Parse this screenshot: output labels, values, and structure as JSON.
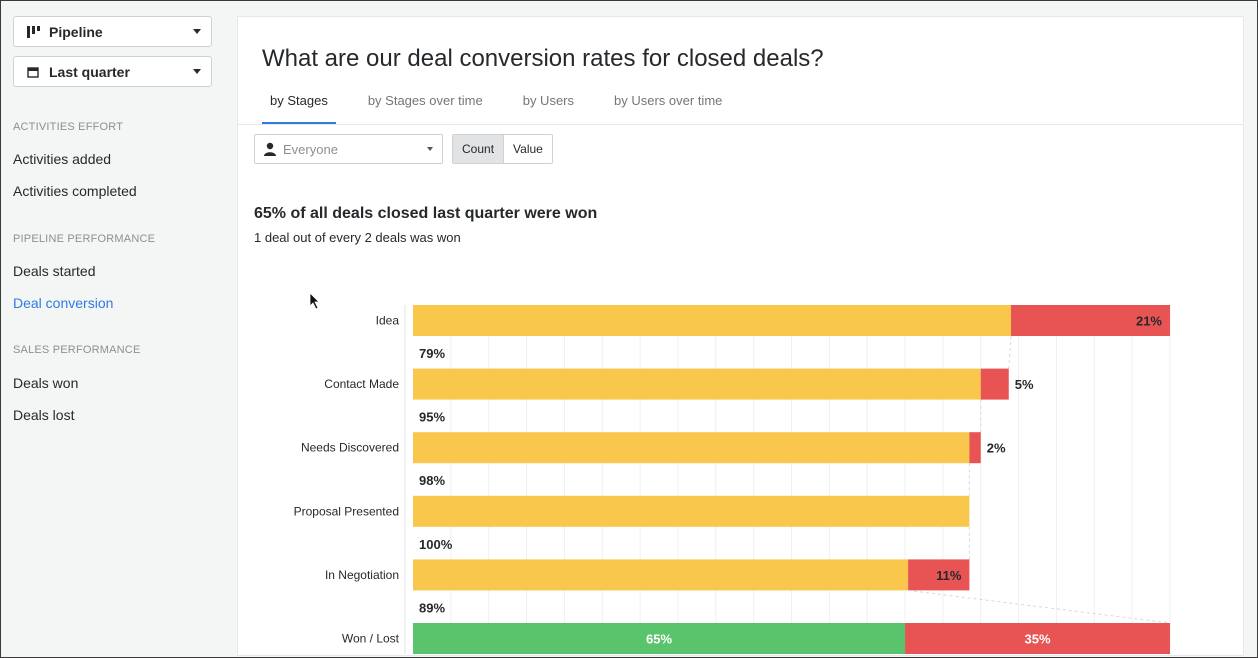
{
  "sidebar": {
    "pipeline_dropdown": {
      "label": "Pipeline",
      "icon": "pipeline-icon"
    },
    "period_dropdown": {
      "label": "Last quarter",
      "icon": "calendar-icon"
    },
    "sections": [
      {
        "heading": "ACTIVITIES EFFORT",
        "items": [
          {
            "label": "Activities added"
          },
          {
            "label": "Activities completed"
          }
        ]
      },
      {
        "heading": "PIPELINE PERFORMANCE",
        "items": [
          {
            "label": "Deals started"
          },
          {
            "label": "Deal conversion",
            "active": true
          }
        ]
      },
      {
        "heading": "SALES PERFORMANCE",
        "items": [
          {
            "label": "Deals won"
          },
          {
            "label": "Deals lost"
          }
        ]
      }
    ]
  },
  "main": {
    "title": "What are our deal conversion rates for closed deals?",
    "tabs": [
      {
        "label": "by Stages",
        "active": true
      },
      {
        "label": "by Stages over time"
      },
      {
        "label": "by Users"
      },
      {
        "label": "by Users over time"
      }
    ],
    "filter": {
      "user_select": "Everyone",
      "toggle": [
        "Count",
        "Value"
      ],
      "toggle_selected": "Count"
    },
    "headline": "65% of all deals closed last quarter were won",
    "subline": "1 deal out of every 2 deals was won"
  },
  "colors": {
    "accent": "#317ae2",
    "conversion": "#f9c74c",
    "lost": "#e85353",
    "won": "#5ac46c"
  },
  "chart_data": {
    "type": "bar",
    "orientation": "horizontal",
    "stacked": true,
    "categories": [
      "Idea",
      "Contact Made",
      "Needs Discovered",
      "Proposal Presented",
      "In Negotiation",
      "Won / Lost"
    ],
    "series": [
      {
        "key": "converted",
        "values": [
          79,
          75,
          73.5,
          73.5,
          65.4,
          65
        ]
      },
      {
        "key": "dropped",
        "values": [
          21,
          3.7,
          1.5,
          0,
          8.1,
          35
        ]
      }
    ],
    "drop_labels": [
      "21%",
      "5%",
      "2%",
      "",
      "11%",
      "35%"
    ],
    "conversion_labels": [
      "79%",
      "95%",
      "98%",
      "100%",
      "89%"
    ],
    "won_label": "65%",
    "xlim": [
      0,
      100
    ],
    "grid": true
  }
}
